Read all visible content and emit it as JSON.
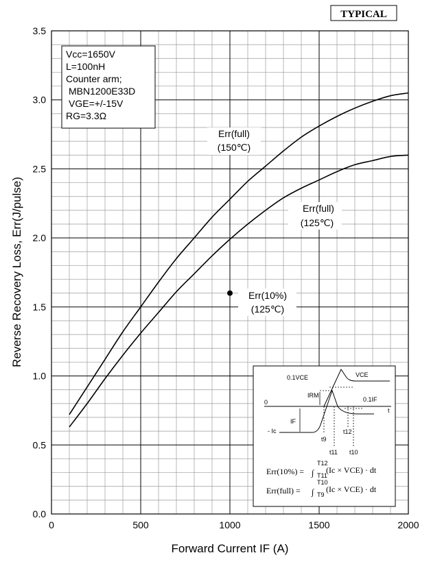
{
  "badge": "TYPICAL",
  "chart_data": {
    "type": "line",
    "xlabel": "Forward Current  IF (A)",
    "ylabel": "Reverse Recovery Loss, Err(J/pulse)",
    "xlim": [
      0,
      2000
    ],
    "ylim": [
      0,
      3.5
    ],
    "x_ticks": [
      "0",
      "500",
      "1000",
      "1500",
      "2000"
    ],
    "y_ticks": [
      "0.0",
      "0.5",
      "1.0",
      "1.5",
      "2.0",
      "2.5",
      "3.0",
      "3.5"
    ],
    "grid": true,
    "series": [
      {
        "name_lines": [
          "Err(full)",
          "(150℃)"
        ],
        "x": [
          100,
          200,
          300,
          400,
          500,
          600,
          700,
          800,
          900,
          1000,
          1100,
          1200,
          1300,
          1400,
          1500,
          1600,
          1700,
          1800,
          1900,
          2000
        ],
        "y": [
          0.72,
          0.92,
          1.12,
          1.32,
          1.5,
          1.68,
          1.85,
          2.0,
          2.15,
          2.28,
          2.41,
          2.52,
          2.63,
          2.73,
          2.81,
          2.88,
          2.94,
          2.99,
          3.03,
          3.05
        ]
      },
      {
        "name_lines": [
          "Err(full)",
          "(125℃)"
        ],
        "x": [
          100,
          200,
          300,
          400,
          500,
          600,
          700,
          800,
          900,
          1000,
          1100,
          1200,
          1300,
          1400,
          1500,
          1600,
          1700,
          1800,
          1900,
          2000
        ],
        "y": [
          0.63,
          0.8,
          0.98,
          1.15,
          1.31,
          1.46,
          1.61,
          1.74,
          1.87,
          1.99,
          2.1,
          2.2,
          2.29,
          2.36,
          2.42,
          2.48,
          2.53,
          2.56,
          2.59,
          2.6
        ]
      }
    ],
    "points": [
      {
        "name_lines": [
          "Err(10%)",
          "(125℃)"
        ],
        "x": 1000,
        "y": 1.6
      }
    ]
  },
  "conditions": [
    "Vcc=1650V",
    "L=100nH",
    "Counter arm;",
    "MBN1200E33D",
    "VGE=+/-15V",
    "RG=3.3Ω"
  ],
  "inset": {
    "vce_level": "0.1VCE",
    "vce": "VCE",
    "irm": "IRM",
    "if_lvl": "0.1IF",
    "zero": "0",
    "t_axis": "t",
    "if_lbl": "IF",
    "ic": "- Ic",
    "t9": "t9",
    "t11": "t11",
    "t12": "t12",
    "t10": "t10",
    "formula1_lhs": "Err(10%) =",
    "formula1_upper": "T12",
    "formula1_lower": "T11",
    "formula1_rhs": "(Ic × VCE) · dt",
    "formula2_lhs": "Err(full) =",
    "formula2_upper": "T10",
    "formula2_lower": "T9",
    "formula2_rhs": "(Ic × VCE) · dt"
  }
}
